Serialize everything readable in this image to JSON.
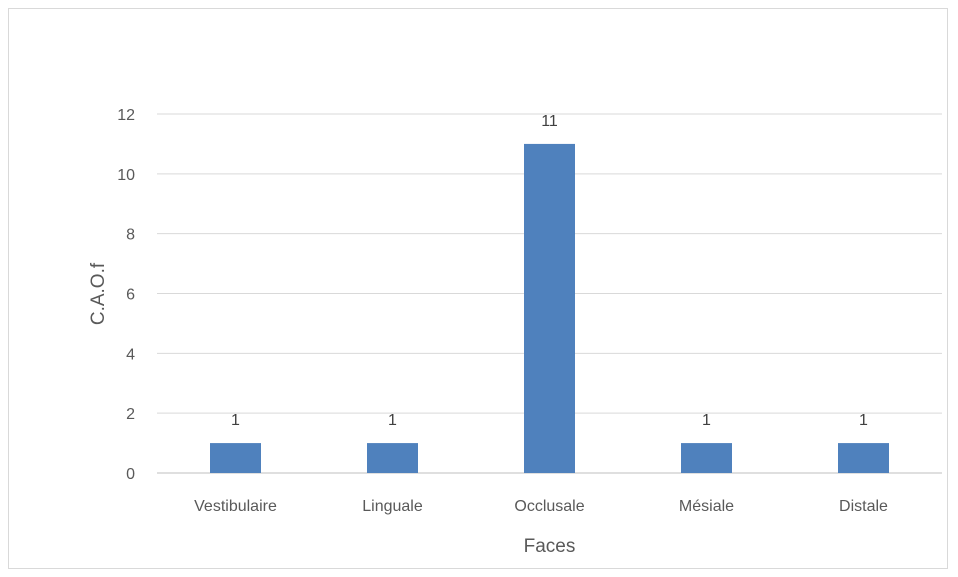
{
  "chart_data": {
    "type": "bar",
    "title": "",
    "xlabel": "Faces",
    "ylabel": "C.A.O.f",
    "categories": [
      "Vestibulaire",
      "Linguale",
      "Occlusale",
      "Mésiale",
      "Distale"
    ],
    "series": [
      {
        "values": [
          1,
          1,
          11,
          1,
          1
        ]
      }
    ],
    "ylim": [
      0,
      12
    ],
    "yticks": [
      0,
      2,
      4,
      6,
      8,
      10,
      12
    ],
    "grid": true,
    "legend": "none",
    "data_labels": true,
    "colors": {
      "bar": "#4f81bd",
      "grid": "#d9d9d9",
      "text": "#595959",
      "frame": "#d9d9d9"
    }
  }
}
